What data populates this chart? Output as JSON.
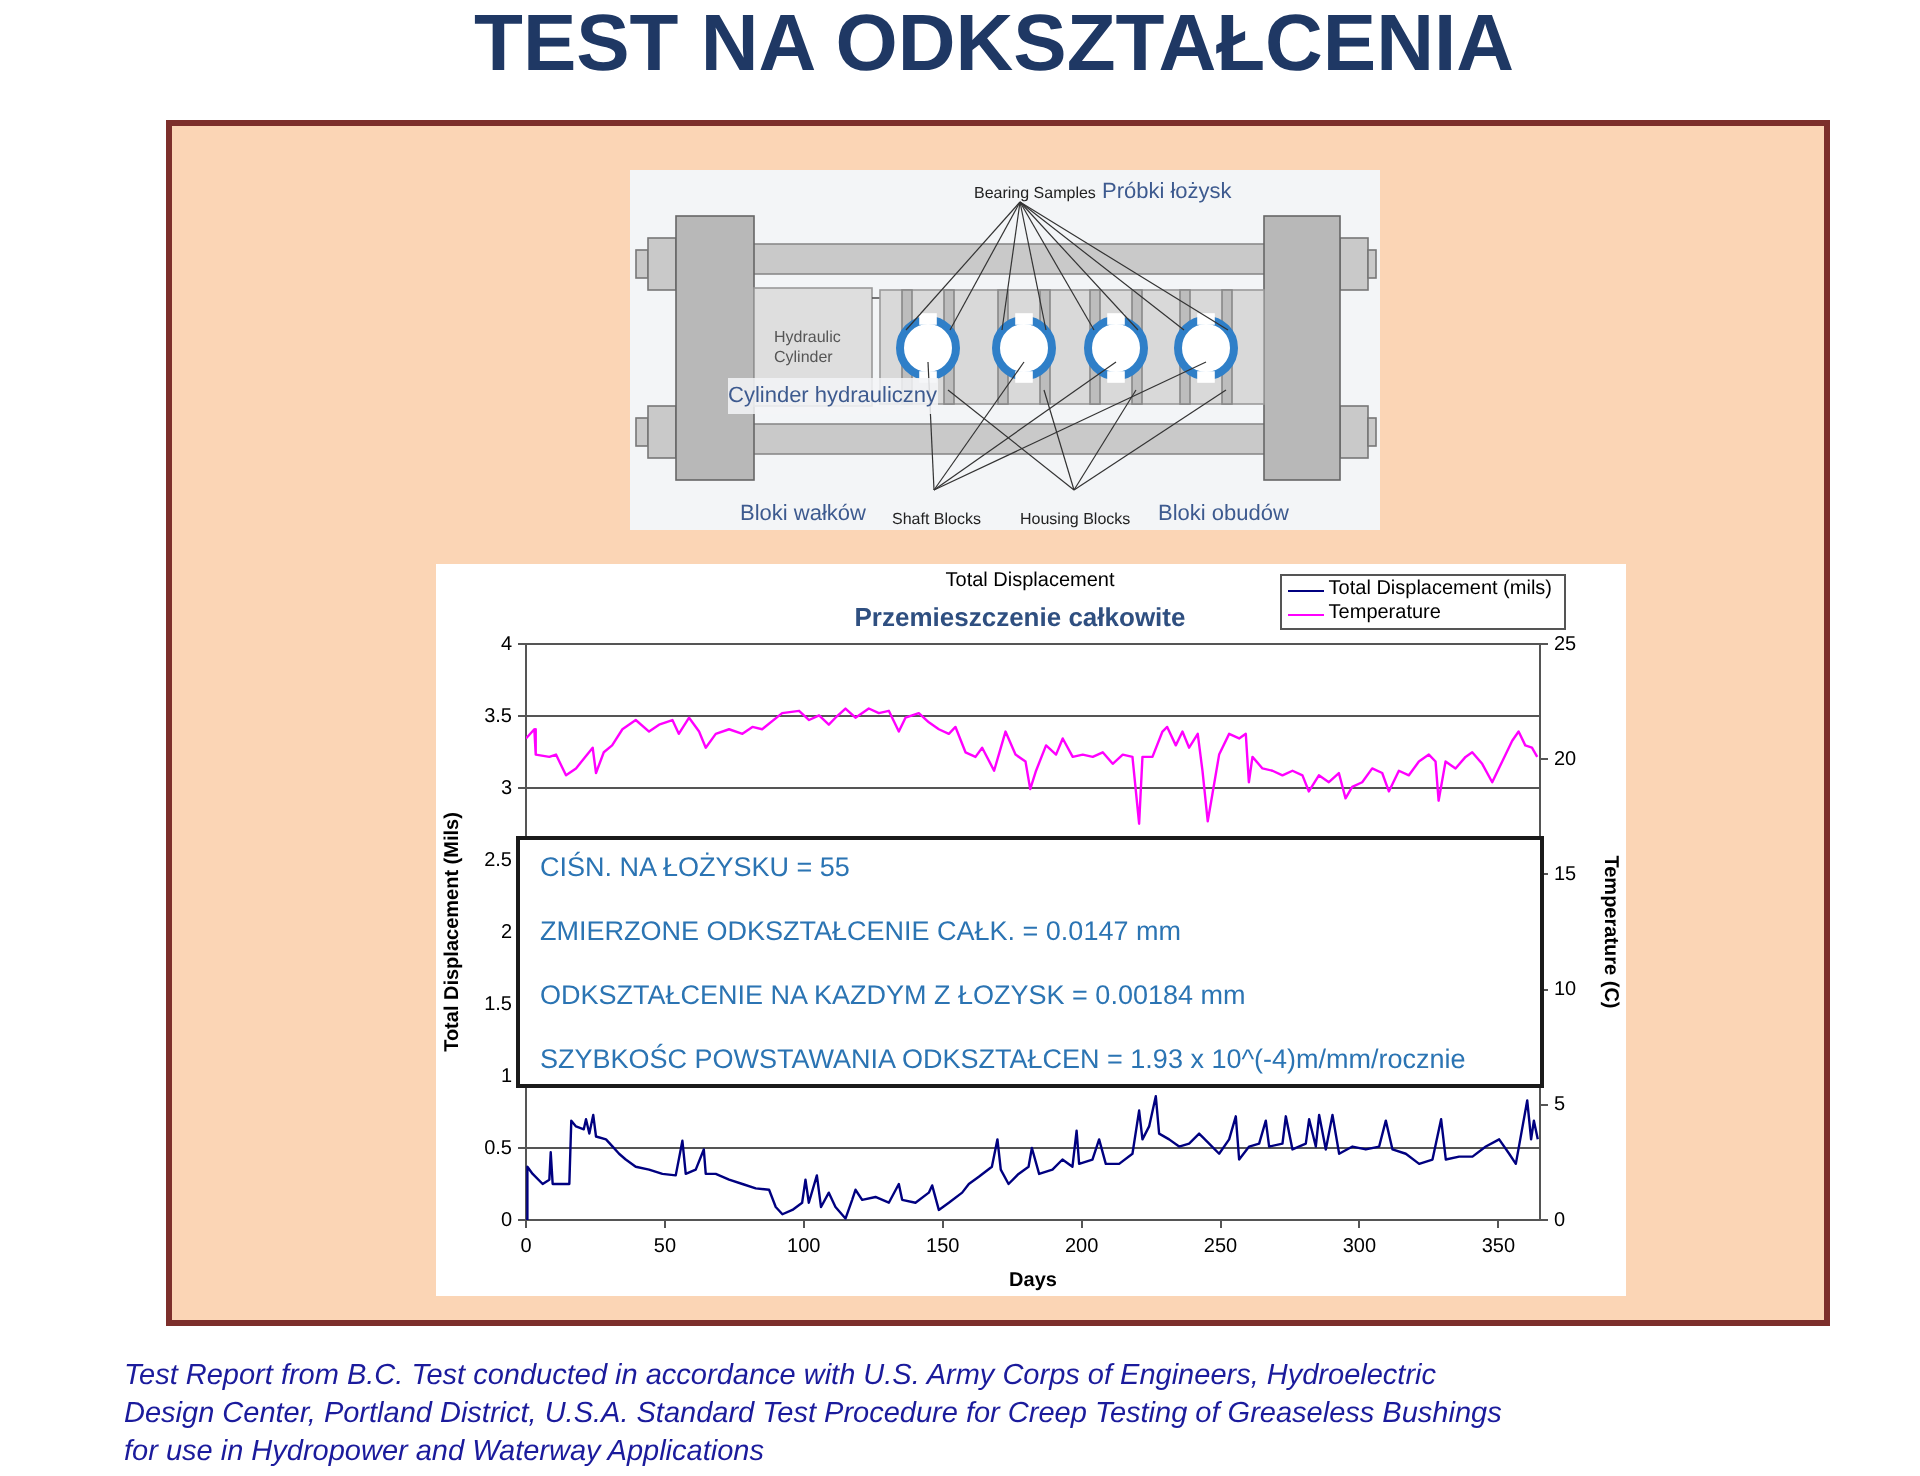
{
  "chart_data": {
    "type": "line",
    "title": "TEST NA ODKSZTAŁCENIA",
    "subtitle": "Total Displacement",
    "xlabel": "Days",
    "ylabel": "Total Displacement (Mils)",
    "y2label": "Temperature (C)",
    "annotations": [
      "Przemieszczenie całkowite",
      "CIŚN. NA ŁOŻYSKU = 55",
      "ZMIERZONE ODKSZTAŁCENIE CAŁK. = 0.0147 mm",
      "ODKSZTAŁCENIE NA KAZDYM Z ŁOZYSK = 0.00184 mm",
      "SZYBKOŚC POWSTAWANIA ODKSZTAŁCEN = 1.93 x 10^(-4)m/mm/rocznie",
      "Bearing Samples",
      "Próbki łożysk",
      "Hydraulic Cylinder",
      "Cylinder hydrauliczny",
      "Bloki wałków",
      "Shaft Blocks",
      "Housing Blocks",
      "Bloki obudów",
      "Test Report from B.C.  Test conducted in accordance with U.S. Army Corps of Engineers, Hydroelectric Design Center, Portland District, U.S.A. Standard Test Procedure for Creep Testing of Greaseless Bushings for use in Hydropower and Waterway Applications"
    ],
    "xlim": [
      0,
      365
    ],
    "xticks": [
      0,
      50,
      100,
      150,
      200,
      250,
      300,
      350
    ],
    "ylim": [
      0,
      4
    ],
    "yticks": [
      0,
      0.5,
      1,
      1.5,
      2,
      2.5,
      3,
      3.5,
      4
    ],
    "y2lim": [
      0,
      25
    ],
    "y2ticks": [
      0,
      5,
      10,
      15,
      20,
      25
    ],
    "grid": "y",
    "legend": "top right",
    "marker": "none",
    "series": [
      {
        "name": "Total Displacement (mils)",
        "color": "#000080",
        "x": [
          0,
          0.5,
          2.4,
          6,
          8.4,
          8.9,
          9.6,
          13.2,
          15.6,
          16.3,
          18,
          20.8,
          21.6,
          22.8,
          24.2,
          25.2,
          28.8,
          31.2,
          33.5,
          35.9,
          39.5,
          44.3,
          49.1,
          53.9,
          56.3,
          57.5,
          61.1,
          64,
          64.7,
          68.3,
          73.1,
          77.9,
          82.7,
          87.5,
          89.9,
          92.3,
          95.9,
          99.4,
          100.6,
          101.8,
          104.7,
          106.2,
          109,
          111.4,
          115,
          117.4,
          118.6,
          121,
          125.8,
          130.6,
          134.2,
          135.4,
          140.2,
          145,
          146.2,
          148.6,
          152.2,
          157,
          159.4,
          163,
          167.7,
          169.7,
          170.9,
          173.7,
          177.3,
          180.9,
          182.1,
          184.7,
          189.5,
          193.1,
          196.7,
          198.2,
          199.1,
          203.9,
          206.3,
          208.7,
          213.5,
          218.3,
          220.7,
          221.9,
          224.3,
          226.7,
          227.9,
          231.5,
          235.1,
          238.7,
          242.3,
          245.9,
          249.5,
          253.1,
          255.5,
          256.7,
          260.3,
          263.9,
          266.3,
          267.5,
          272.3,
          273.5,
          275.9,
          280.7,
          281.9,
          284.3,
          285.5,
          287.9,
          290.3,
          292.7,
          297.5,
          302.3,
          307.1,
          309.5,
          311.9,
          316.7,
          321.5,
          326.3,
          329.4,
          331.1,
          335.9,
          340.7,
          345.5,
          350.3,
          353.9,
          356.3,
          360.4,
          361.8,
          362.8,
          364.2
        ],
        "values": [
          0,
          0.37,
          0.32,
          0.25,
          0.28,
          0.47,
          0.25,
          0.25,
          0.25,
          0.69,
          0.65,
          0.63,
          0.7,
          0.6,
          0.73,
          0.58,
          0.56,
          0.51,
          0.46,
          0.42,
          0.37,
          0.35,
          0.32,
          0.31,
          0.55,
          0.32,
          0.35,
          0.49,
          0.32,
          0.32,
          0.28,
          0.25,
          0.22,
          0.21,
          0.09,
          0.04,
          0.07,
          0.12,
          0.28,
          0.12,
          0.31,
          0.09,
          0.19,
          0.09,
          0.01,
          0.14,
          0.21,
          0.14,
          0.16,
          0.12,
          0.25,
          0.14,
          0.12,
          0.19,
          0.24,
          0.07,
          0.12,
          0.19,
          0.25,
          0.3,
          0.37,
          0.56,
          0.35,
          0.25,
          0.32,
          0.37,
          0.5,
          0.32,
          0.35,
          0.42,
          0.37,
          0.62,
          0.39,
          0.42,
          0.56,
          0.39,
          0.39,
          0.46,
          0.76,
          0.56,
          0.65,
          0.86,
          0.6,
          0.56,
          0.51,
          0.53,
          0.6,
          0.53,
          0.46,
          0.56,
          0.72,
          0.42,
          0.51,
          0.53,
          0.69,
          0.51,
          0.53,
          0.72,
          0.49,
          0.53,
          0.7,
          0.51,
          0.73,
          0.49,
          0.73,
          0.46,
          0.51,
          0.49,
          0.51,
          0.69,
          0.49,
          0.46,
          0.39,
          0.42,
          0.7,
          0.42,
          0.44,
          0.44,
          0.51,
          0.56,
          0.46,
          0.39,
          0.83,
          0.56,
          0.69,
          0.56
        ]
      },
      {
        "name": "Temperature",
        "color": "#ff00ff",
        "axis": "y2",
        "x": [
          0,
          3,
          3.5,
          8.4,
          10.8,
          14.4,
          18,
          24,
          25.2,
          28,
          31,
          34.7,
          39.5,
          44.3,
          47.9,
          52.7,
          55,
          58.7,
          62.3,
          64.7,
          68.3,
          73.1,
          77.9,
          81.5,
          85,
          92.2,
          98.3,
          101.9,
          105.5,
          109,
          111.4,
          115,
          118.6,
          123.4,
          127,
          130.6,
          134.2,
          136.6,
          141.4,
          145,
          148.6,
          152.2,
          154.6,
          158.2,
          161.8,
          164.2,
          168.5,
          172.6,
          176.2,
          179.8,
          181.5,
          183.6,
          187.2,
          190.8,
          193.2,
          196.8,
          200.4,
          204,
          207.6,
          211.2,
          214.8,
          218.3,
          220.7,
          221.9,
          225.5,
          229.1,
          230.8,
          233.9,
          236.3,
          238.7,
          241.8,
          243.5,
          245.4,
          247.1,
          249.5,
          253.1,
          256.7,
          259.1,
          260.2,
          261.5,
          265.1,
          268.7,
          272.3,
          275.9,
          279.5,
          281.8,
          285.4,
          289,
          292.6,
          295,
          297.4,
          301,
          304.6,
          308.2,
          310.6,
          314.2,
          317.8,
          321.4,
          325,
          327.4,
          328.5,
          331,
          334.6,
          338.2,
          340.6,
          344.2,
          347.8,
          351.4,
          355,
          357.3,
          359.7,
          362.1,
          364
        ],
        "values": [
          20.9,
          21.3,
          20.2,
          20.1,
          20.2,
          19.3,
          19.6,
          20.5,
          19.4,
          20.3,
          20.6,
          21.3,
          21.7,
          21.2,
          21.5,
          21.7,
          21.1,
          21.8,
          21.2,
          20.5,
          21.1,
          21.3,
          21.1,
          21.4,
          21.3,
          22.0,
          22.1,
          21.7,
          21.9,
          21.5,
          21.8,
          22.2,
          21.8,
          22.2,
          22.0,
          22.1,
          21.2,
          21.8,
          22.0,
          21.6,
          21.3,
          21.1,
          21.4,
          20.3,
          20.1,
          20.5,
          19.5,
          21.2,
          20.2,
          19.9,
          18.7,
          19.5,
          20.6,
          20.2,
          20.9,
          20.1,
          20.2,
          20.1,
          20.3,
          19.8,
          20.2,
          20.1,
          17.2,
          20.1,
          20.1,
          21.2,
          21.4,
          20.6,
          21.2,
          20.5,
          21.1,
          19.5,
          17.3,
          18.5,
          20.2,
          21.1,
          20.9,
          21.1,
          19.0,
          20.1,
          19.6,
          19.5,
          19.3,
          19.5,
          19.3,
          18.6,
          19.3,
          19.0,
          19.4,
          18.3,
          18.8,
          19.0,
          19.6,
          19.4,
          18.6,
          19.5,
          19.3,
          19.9,
          20.2,
          19.9,
          18.2,
          19.9,
          19.6,
          20.1,
          20.3,
          19.8,
          19.0,
          19.9,
          20.8,
          21.2,
          20.6,
          20.5,
          20.1
        ]
      }
    ]
  }
}
